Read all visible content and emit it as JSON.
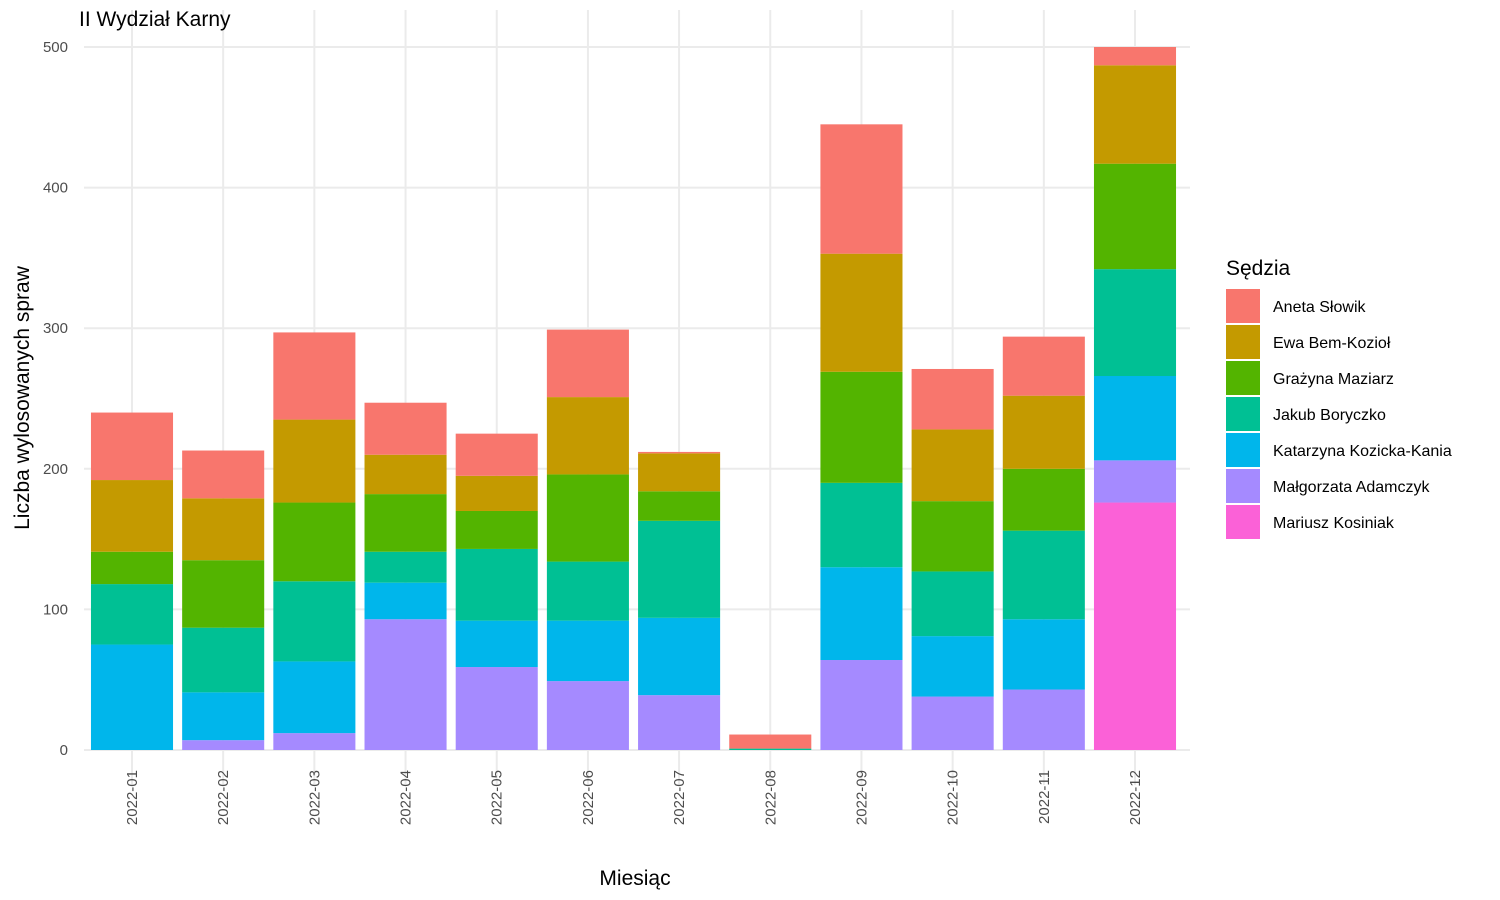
{
  "chart_data": {
    "type": "bar",
    "stacked": true,
    "title": "II Wydział Karny",
    "xlabel": "Miesiąc",
    "ylabel": "Liczba wylosowanych spraw",
    "ylim": [
      0,
      510
    ],
    "yticks": [
      0,
      100,
      200,
      300,
      400,
      500
    ],
    "grid": true,
    "legend_title": "Sędzia",
    "legend_position": "right",
    "categories": [
      "2022-01",
      "2022-02",
      "2022-03",
      "2022-04",
      "2022-05",
      "2022-06",
      "2022-07",
      "2022-08",
      "2022-09",
      "2022-10",
      "2022-11",
      "2022-12"
    ],
    "stack_order_bottom_to_top": [
      "Mariusz Kosiniak",
      "Małgorzata Adamczyk",
      "Katarzyna Kozicka-Kania",
      "Jakub Boryczko",
      "Grażyna Maziarz",
      "Ewa Bem-Kozioł",
      "Aneta Słowik"
    ],
    "series": [
      {
        "name": "Aneta Słowik",
        "color": "#F8766D",
        "values": [
          48,
          34,
          62,
          37,
          30,
          48,
          1,
          10,
          92,
          43,
          42,
          13
        ]
      },
      {
        "name": "Ewa Bem-Kozioł",
        "color": "#C49A00",
        "values": [
          51,
          44,
          59,
          28,
          25,
          55,
          27,
          0,
          84,
          51,
          52,
          70
        ]
      },
      {
        "name": "Grażyna Maziarz",
        "color": "#53B400",
        "values": [
          23,
          48,
          56,
          41,
          27,
          62,
          21,
          0,
          79,
          50,
          44,
          75
        ]
      },
      {
        "name": "Jakub Boryczko",
        "color": "#00C094",
        "values": [
          43,
          46,
          57,
          22,
          51,
          42,
          69,
          1,
          60,
          46,
          63,
          76
        ]
      },
      {
        "name": "Katarzyna Kozicka-Kania",
        "color": "#00B6EB",
        "values": [
          75,
          34,
          51,
          26,
          33,
          43,
          55,
          0,
          66,
          43,
          50,
          60
        ]
      },
      {
        "name": "Małgorzata Adamczyk",
        "color": "#A58AFF",
        "values": [
          0,
          7,
          12,
          93,
          59,
          49,
          39,
          0,
          64,
          38,
          43,
          30
        ]
      },
      {
        "name": "Mariusz Kosiniak",
        "color": "#FB61D7",
        "values": [
          0,
          0,
          0,
          0,
          0,
          0,
          0,
          0,
          0,
          0,
          0,
          176
        ]
      }
    ]
  }
}
